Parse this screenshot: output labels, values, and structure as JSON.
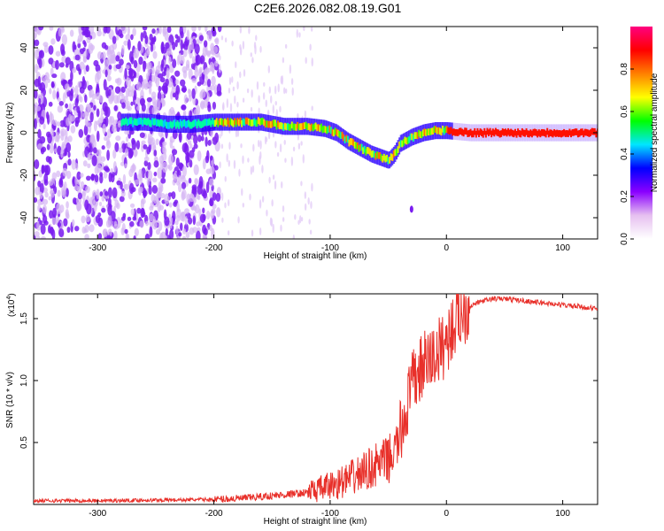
{
  "figure_title": "C2E6.2026.082.08.19.G01",
  "chart_data": [
    {
      "type": "heatmap",
      "title": "",
      "xlabel": "Height of straight line (km)",
      "ylabel": "Frequency (Hz)",
      "xlim": [
        -355,
        130
      ],
      "ylim": [
        -50,
        50
      ],
      "x_ticks": [
        -300,
        -200,
        -100,
        0,
        100
      ],
      "y_ticks": [
        -40,
        -20,
        0,
        20,
        40
      ],
      "colorbar": {
        "label": "Normalized spectral amplitude",
        "range": [
          0,
          1
        ],
        "ticks": [
          0.0,
          0.2,
          0.4,
          0.6,
          0.8
        ],
        "colors": [
          "#ffffff",
          "#e6c0f0",
          "#8a00ff",
          "#0000ff",
          "#00e6ff",
          "#00ff00",
          "#ffff00",
          "#ff8000",
          "#ff0000",
          "#ff0080"
        ]
      },
      "ridge": {
        "x": [
          -280,
          -260,
          -240,
          -220,
          -200,
          -180,
          -160,
          -140,
          -120,
          -105,
          -95,
          -85,
          -75,
          -65,
          -55,
          -50,
          -45,
          -40,
          -30,
          -20,
          -10,
          0,
          20,
          60,
          130
        ],
        "y": [
          5,
          5,
          4,
          4,
          5,
          5,
          5,
          3,
          3,
          2,
          0,
          -4,
          -7,
          -10,
          -12,
          -13,
          -10,
          -5,
          -2,
          0,
          1,
          1,
          0,
          0,
          0
        ]
      },
      "outlier": {
        "x": -30,
        "y": -36
      }
    },
    {
      "type": "line",
      "title": "",
      "xlabel": "Height of straight line (km)",
      "ylabel": "SNR (10 * v/v)",
      "y_scale_label": "(x10",
      "y_scale_exponent": "4",
      "xlim": [
        -355,
        130
      ],
      "ylim": [
        0,
        1.7
      ],
      "x_ticks": [
        -300,
        -200,
        -100,
        0,
        100
      ],
      "y_ticks": [
        0.5,
        1.0,
        1.5
      ],
      "series": [
        {
          "name": "SNR",
          "color": "#e8302a",
          "x": [
            -355,
            -300,
            -250,
            -200,
            -175,
            -150,
            -125,
            -110,
            -100,
            -90,
            -80,
            -70,
            -60,
            -50,
            -45,
            -40,
            -35,
            -30,
            -25,
            -20,
            -15,
            -10,
            -5,
            0,
            5,
            10,
            20,
            30,
            40,
            50,
            70,
            100,
            130
          ],
          "values": [
            0.03,
            0.03,
            0.035,
            0.04,
            0.05,
            0.07,
            0.09,
            0.12,
            0.15,
            0.18,
            0.22,
            0.27,
            0.32,
            0.36,
            0.42,
            0.55,
            0.75,
            0.95,
            1.05,
            1.12,
            1.16,
            1.2,
            1.25,
            1.32,
            1.42,
            1.52,
            1.6,
            1.64,
            1.66,
            1.66,
            1.64,
            1.61,
            1.58
          ]
        }
      ]
    }
  ]
}
